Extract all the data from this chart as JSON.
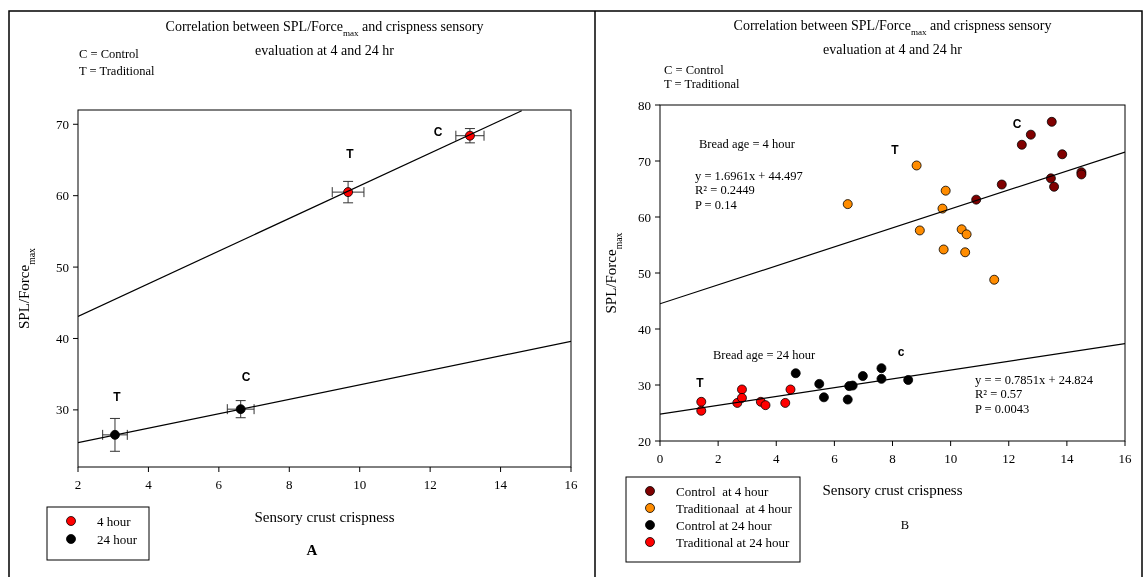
{
  "chart_data": [
    {
      "type": "scatter",
      "title": "Correlation between SPL/Force$_{max}$ and crispness sensory evaluation at 4 and 24 hr",
      "xlabel": "Sensory crust crispness",
      "ylabel": "SPL/Force$_{max}$",
      "xlim": [
        2,
        16
      ],
      "xticks": [
        2,
        4,
        6,
        8,
        10,
        12,
        14,
        16
      ],
      "ylim": [
        22,
        72
      ],
      "yticks": [
        30,
        40,
        50,
        60,
        70
      ],
      "grid": false,
      "legend": "bottom left",
      "series": [
        {
          "name": "4 hour",
          "marker": "circle",
          "color": "#ff0000",
          "x": [
            9.67,
            13.13
          ],
          "values": [
            60.5,
            68.4
          ],
          "errors": [
            [
              59,
              62
            ],
            [
              67.4,
              69.4
            ]
          ],
          "xerrors": [
            [
              9.22,
              10.12
            ],
            [
              12.73,
              13.53
            ]
          ]
        },
        {
          "name": "24 hour",
          "marker": "circle",
          "color": "#000000",
          "x": [
            3.05,
            6.62
          ],
          "values": [
            26.5,
            30.1
          ],
          "errors": [
            [
              24.2,
              28.8
            ],
            [
              28.9,
              31.3
            ]
          ],
          "xerrors": [
            [
              2.7,
              3.4
            ],
            [
              6.24,
              7.0
            ]
          ]
        },
        {
          "type": "line",
          "color": "#000000",
          "x": [
            2,
            14.6
          ],
          "values": [
            43.1,
            71.9
          ]
        },
        {
          "type": "line",
          "color": "#000000",
          "x": [
            2,
            16
          ],
          "values": [
            25.4,
            39.6
          ]
        }
      ],
      "annotations": [
        "C = Control",
        "T = Traditional",
        "A",
        "T",
        "C",
        "T",
        "C"
      ]
    },
    {
      "type": "scatter",
      "title": "Correlation between SPL/Force$_{max}$ and crispness sensory evaluation at 4 and 24 hr",
      "xlabel": "Sensory crust crispness",
      "ylabel": "SPL/Force$_{max}$",
      "xlim": [
        0,
        16
      ],
      "xticks": [
        0,
        2,
        4,
        6,
        8,
        10,
        12,
        14,
        16
      ],
      "ylim": [
        20,
        80
      ],
      "yticks": [
        20,
        30,
        40,
        50,
        60,
        70,
        80
      ],
      "grid": false,
      "legend": "bottom left",
      "series": [
        {
          "name": "Control  at 4 hour",
          "marker": "circle",
          "color": "#800000",
          "x": [
            13.48,
            12.76,
            12.45,
            13.84,
            11.76,
            10.88,
            13.45,
            13.56,
            14.5,
            14.5
          ],
          "values": [
            77.0,
            74.7,
            72.9,
            71.2,
            65.8,
            63.1,
            66.9,
            65.4,
            68.0,
            67.6
          ]
        },
        {
          "name": "Traditionaal  at 4 hour",
          "marker": "circle",
          "color": "#ff8c00",
          "x": [
            8.83,
            6.46,
            9.83,
            9.72,
            8.94,
            10.38,
            10.55,
            9.76,
            10.5,
            11.5
          ],
          "values": [
            69.2,
            62.3,
            64.7,
            61.5,
            57.6,
            57.8,
            56.9,
            54.2,
            53.7,
            48.8
          ]
        },
        {
          "name": "Control at 24 hour",
          "marker": "circle",
          "color": "#000000",
          "x": [
            4.67,
            5.48,
            5.64,
            6.46,
            6.51,
            6.63,
            6.98,
            7.62,
            7.62,
            8.54
          ],
          "values": [
            32.1,
            30.2,
            27.8,
            27.4,
            29.8,
            29.9,
            31.6,
            33.0,
            31.1,
            30.9
          ]
        },
        {
          "name": "Traditional at 24 hour",
          "marker": "circle",
          "color": "#ff0000",
          "x": [
            1.42,
            1.42,
            2.66,
            2.82,
            2.82,
            3.47,
            3.63,
            4.31,
            4.49
          ],
          "values": [
            27.0,
            25.4,
            26.8,
            29.2,
            27.7,
            27.0,
            26.4,
            26.8,
            29.2
          ]
        },
        {
          "type": "line",
          "color": "#000000",
          "x": [
            0,
            16
          ],
          "values": [
            44.5,
            71.6
          ]
        },
        {
          "type": "line",
          "color": "#000000",
          "x": [
            0,
            16
          ],
          "values": [
            24.8,
            37.4
          ]
        }
      ],
      "annotations": [
        "C = Control",
        "T = Traditional",
        "B",
        "Bread age = 4 hour",
        "y = 1.6961x + 44.497",
        "R² = 0.2449",
        "P = 0.14",
        "Bread age = 24 hour",
        "y = = 0.7851x + 24.824",
        "R² = 0.57",
        "P = 0.0043",
        "T",
        "C",
        "T",
        "c"
      ]
    }
  ]
}
